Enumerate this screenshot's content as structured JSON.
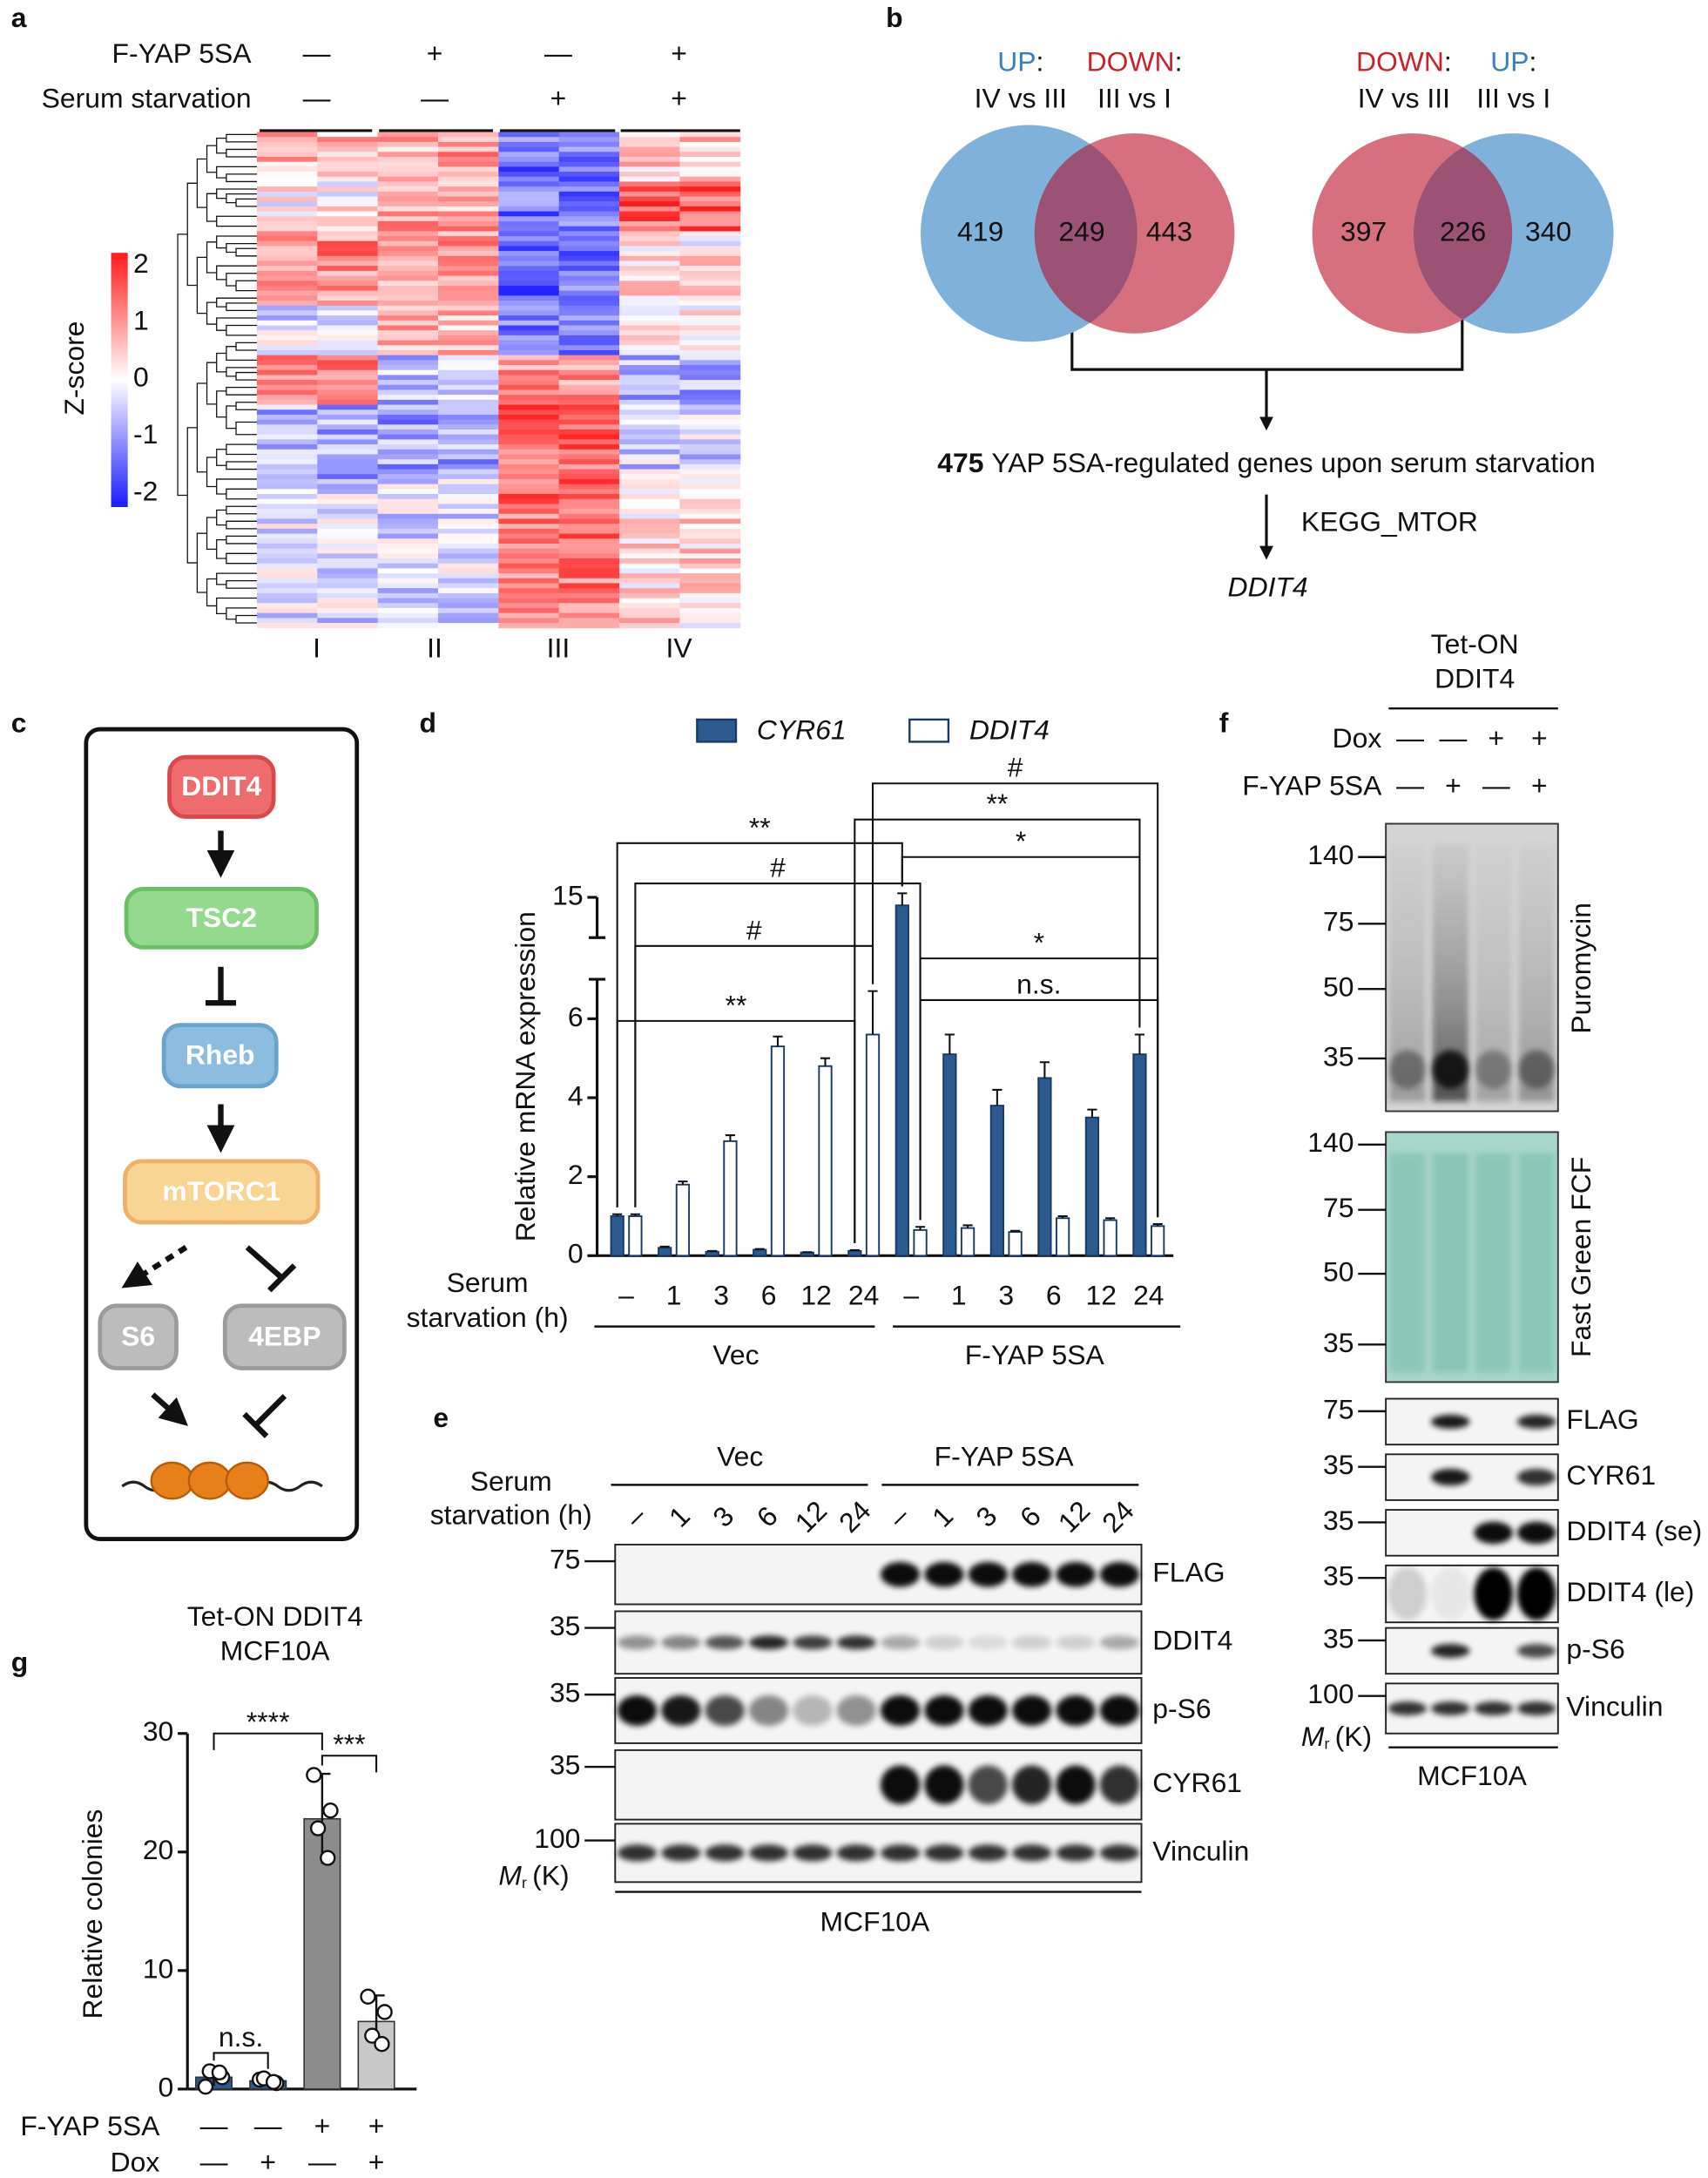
{
  "panel_labels": [
    "a",
    "b",
    "c",
    "d",
    "e",
    "f",
    "g"
  ],
  "heatmap": {
    "row_labels": [
      "F-YAP 5SA",
      "Serum starvation"
    ],
    "conditions": [
      [
        "—",
        "+",
        "—",
        "+"
      ],
      [
        "—",
        "—",
        "+",
        "+"
      ]
    ],
    "colorbar_label": "Z-score",
    "colorbar_ticks": [
      2,
      1,
      0,
      -1,
      -2
    ],
    "groups": [
      "I",
      "II",
      "III",
      "IV"
    ]
  },
  "venn": {
    "separator": ":",
    "diagrams": [
      {
        "sets": [
          {
            "name": "UP",
            "comparison": "IV vs III",
            "color": "#3a7fc1",
            "fill": "#7fb1da"
          },
          {
            "name": "DOWN",
            "comparison": "III vs I",
            "color": "#c8232c",
            "fill": "#d6707f"
          }
        ],
        "counts": [
          419,
          249,
          443
        ]
      },
      {
        "sets": [
          {
            "name": "DOWN",
            "comparison": "IV vs III",
            "color": "#c8232c",
            "fill": "#d6707f"
          },
          {
            "name": "UP",
            "comparison": "III vs I",
            "color": "#3a7fc1",
            "fill": "#7fb1da"
          }
        ],
        "counts": [
          397,
          226,
          340
        ]
      }
    ],
    "summary": {
      "count": 475,
      "text": "YAP 5SA-regulated genes upon serum starvation",
      "pathway": "KEGG_MTOR",
      "gene": "DDIT4"
    }
  },
  "pathway": {
    "nodes": [
      "DDIT4",
      "TSC2",
      "Rheb",
      "mTORC1",
      "S6",
      "4EBP"
    ]
  },
  "blot_e": {
    "x_label": [
      "Serum",
      "starvation (h)"
    ],
    "lanes": [
      "–",
      "1",
      "3",
      "6",
      "12",
      "24",
      "–",
      "1",
      "3",
      "6",
      "12",
      "24"
    ],
    "groups": [
      "Vec",
      "F-YAP 5SA"
    ],
    "rows": [
      {
        "name": "FLAG",
        "marker": 75
      },
      {
        "name": "DDIT4",
        "marker": 35
      },
      {
        "name": "p-S6",
        "marker": 35
      },
      {
        "name": "CYR61",
        "marker": 35
      },
      {
        "name": "Vinculin",
        "marker": 100
      }
    ],
    "mr": {
      "symbol": "M",
      "subscript": "r",
      "unit": "(K)"
    },
    "cell_line": "MCF10A"
  },
  "blot_f": {
    "header": [
      "Tet-ON",
      "DDIT4"
    ],
    "conditions": [
      {
        "name": "Dox",
        "values": [
          "—",
          "—",
          "+",
          "+"
        ]
      },
      {
        "name": "F-YAP 5SA",
        "values": [
          "—",
          "+",
          "—",
          "+"
        ]
      }
    ],
    "gels": [
      {
        "name": "Puromycin",
        "markers": [
          140,
          75,
          50,
          35
        ]
      },
      {
        "name": "Fast Green FCF",
        "markers": [
          140,
          75,
          50,
          35
        ]
      }
    ],
    "rows": [
      {
        "name": "FLAG",
        "marker": 75
      },
      {
        "name": "CYR61",
        "marker": 35
      },
      {
        "name": "DDIT4 (se)",
        "marker": 35
      },
      {
        "name": "DDIT4 (le)",
        "marker": 35
      },
      {
        "name": "p-S6",
        "marker": 35
      },
      {
        "name": "Vinculin",
        "marker": 100
      }
    ],
    "mr": {
      "symbol": "M",
      "subscript": "r",
      "unit": "(K)"
    },
    "cell_line": "MCF10A"
  },
  "chart_data": [
    {
      "type": "bar",
      "y_label": "Relative mRNA expression",
      "x_label": [
        "Serum",
        "starvation (h)"
      ],
      "categories": [
        "–",
        "1",
        "3",
        "6",
        "12",
        "24",
        "–",
        "1",
        "3",
        "6",
        "12",
        "24"
      ],
      "groups": [
        "Vec",
        "F-YAP 5SA"
      ],
      "ylim": [
        0,
        15
      ],
      "ybreak": [
        7,
        14
      ],
      "yticks": [
        0,
        2,
        4,
        6,
        15
      ],
      "series": [
        {
          "name": "CYR61",
          "color": "#2d5a8e",
          "values": [
            1.0,
            0.2,
            0.1,
            0.15,
            0.08,
            0.12,
            14.8,
            5.1,
            3.8,
            4.5,
            3.5,
            5.1
          ],
          "errors": [
            0.05,
            0.03,
            0.02,
            0.02,
            0.01,
            0.02,
            0.3,
            0.5,
            0.4,
            0.4,
            0.2,
            0.5
          ]
        },
        {
          "name": "DDIT4",
          "color": "#ffffff",
          "values": [
            1.0,
            1.8,
            2.9,
            5.3,
            4.8,
            5.6,
            0.65,
            0.7,
            0.6,
            0.95,
            0.9,
            0.75
          ],
          "errors": [
            0.05,
            0.08,
            0.15,
            0.25,
            0.2,
            1.1,
            0.08,
            0.07,
            0.03,
            0.05,
            0.05,
            0.05
          ]
        }
      ],
      "annotations": [
        "**",
        "#",
        "#",
        "**",
        "#",
        "**",
        "*",
        "*",
        "n.s."
      ]
    },
    {
      "type": "bar",
      "title": [
        "Tet-ON DDIT4",
        "MCF10A"
      ],
      "y_label": "Relative colonies",
      "ylim": [
        0,
        30
      ],
      "yticks": [
        0,
        10,
        20,
        30
      ],
      "values": [
        1.0,
        0.7,
        22.8,
        5.7
      ],
      "errors": [
        0.7,
        0.3,
        3.8,
        2.2
      ],
      "colors": [
        "#2d5a8e",
        "#2d5a8e",
        "#8c8c8c",
        "#c8c8c8"
      ],
      "points": [
        [
          0.2,
          1.0,
          1.5,
          1.4
        ],
        [
          0.8,
          0.5,
          0.9,
          0.6
        ],
        [
          26.5,
          23.5,
          22.0,
          19.5
        ],
        [
          7.8,
          6.5,
          4.5,
          3.8
        ]
      ],
      "conditions": [
        {
          "name": "F-YAP 5SA",
          "values": [
            "—",
            "—",
            "+",
            "+"
          ]
        },
        {
          "name": "Dox",
          "values": [
            "—",
            "+",
            "—",
            "+"
          ]
        }
      ],
      "annotations": [
        "****",
        "***",
        "n.s."
      ]
    }
  ]
}
